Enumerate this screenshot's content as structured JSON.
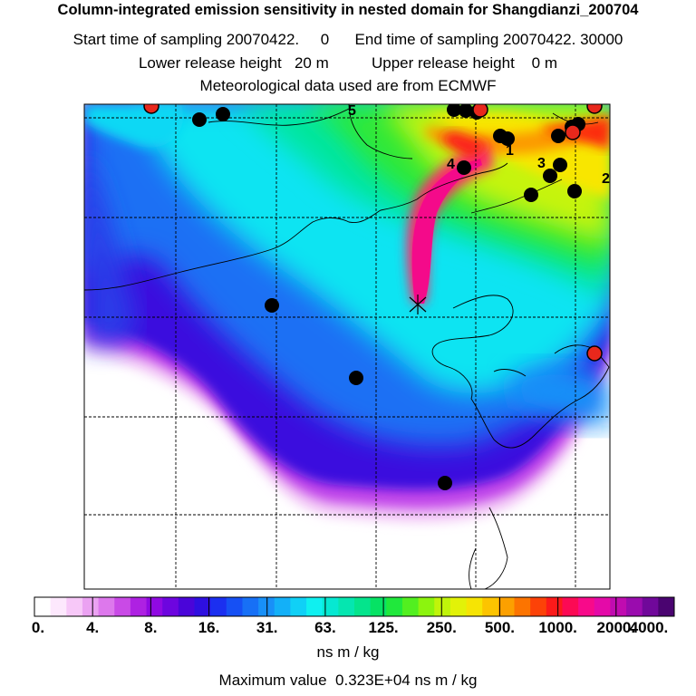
{
  "header": {
    "title": "Column-integrated emission sensitivity in nested domain for Shangdianzi_200704",
    "sampling_line": "Start time of sampling 20070422.     0      End time of sampling 20070422. 30000",
    "release_line": "Lower release height   20 m          Upper release height    0 m",
    "met_line": "Meteorological data used are from ECMWF"
  },
  "colorbar": {
    "tick_labels": [
      "0.",
      "4.",
      "8.",
      "16.",
      "31.",
      "63.",
      "125.",
      "250.",
      "500.",
      "1000.",
      "2000.",
      "4000."
    ],
    "colors": [
      "#ffffff",
      "#fde8fd",
      "#f7c8f8",
      "#eba2f2",
      "#dd78ec",
      "#c94ae6",
      "#ae21e2",
      "#9009e2",
      "#6d05df",
      "#4a05d9",
      "#2e0fe0",
      "#1b2ff0",
      "#1650f4",
      "#1770f6",
      "#1890f8",
      "#13b0f8",
      "#10d0f6",
      "#0ff0f0",
      "#06e8d2",
      "#05e6b0",
      "#04e48c",
      "#06e264",
      "#20e83c",
      "#52ef20",
      "#8cf40e",
      "#c0f40a",
      "#e2f208",
      "#f6e404",
      "#fcc400",
      "#fca000",
      "#fc7400",
      "#fc4208",
      "#fc1a1a",
      "#fc0a54",
      "#f80a8a",
      "#e40aa8",
      "#c00cb0",
      "#9a0cae",
      "#70089a",
      "#4a0470"
    ],
    "units": "ns m / kg"
  },
  "max_value_line": "Maximum value  0.323E+04 ns m / kg",
  "map": {
    "contour_labels": [
      "1",
      "2",
      "3",
      "4",
      "5"
    ],
    "release_marker": "x-cross-icon",
    "station_color_black": "#000000",
    "station_color_red": "#e8281c"
  }
}
